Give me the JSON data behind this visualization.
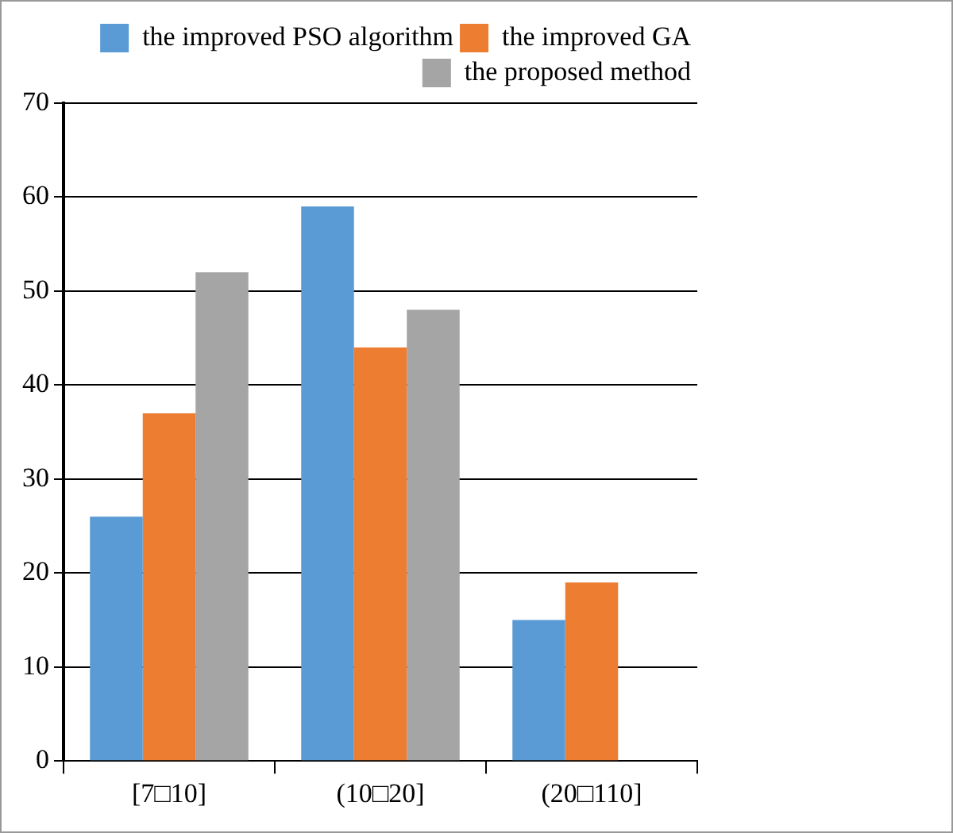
{
  "chart_data": {
    "type": "bar",
    "categories": [
      "[7□10]",
      "(10□20]",
      "(20□110]"
    ],
    "series": [
      {
        "name": "the improved PSO algorithm",
        "color": "#5b9bd5",
        "values": [
          26,
          59,
          15
        ]
      },
      {
        "name": "the improved GA",
        "color": "#ed7d31",
        "values": [
          37,
          44,
          19
        ]
      },
      {
        "name": "the proposed method",
        "color": "#a5a5a5",
        "values": [
          52,
          48,
          null
        ]
      }
    ],
    "ylim": [
      0,
      70
    ],
    "yticks": [
      0,
      10,
      20,
      30,
      40,
      50,
      60,
      70
    ],
    "grid": "y",
    "legend": "top right"
  }
}
